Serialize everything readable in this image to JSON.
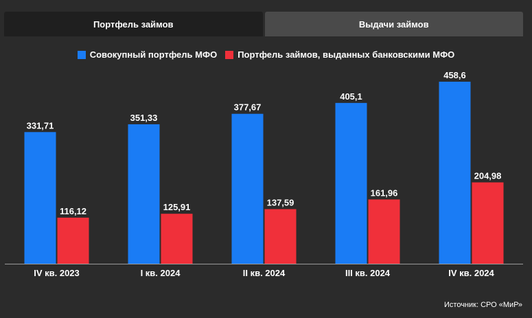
{
  "tabs": {
    "portfolio": "Портфель займов",
    "issuance": "Выдачи займов"
  },
  "colors": {
    "series_total": "#1a7cf5",
    "series_bank": "#f0303a",
    "background": "#2b2b2b"
  },
  "source": "Источник: СРО «МиР»",
  "chart_data": {
    "type": "bar",
    "title": "",
    "xlabel": "",
    "ylabel": "",
    "categories": [
      "IV кв. 2023",
      "I кв. 2024",
      "II кв. 2024",
      "III кв. 2024",
      "IV кв. 2024"
    ],
    "series": [
      {
        "name": "Совокупный портфель МФО",
        "values": [
          331.71,
          351.33,
          377.67,
          405.1,
          458.6
        ],
        "labels": [
          "331,71",
          "351,33",
          "377,67",
          "405,1",
          "458,6"
        ]
      },
      {
        "name": "Портфель займов, выданных банковскими МФО",
        "values": [
          116.12,
          125.91,
          137.59,
          161.96,
          204.98
        ],
        "labels": [
          "116,12",
          "125,91",
          "137,59",
          "161,96",
          "204,98"
        ]
      }
    ],
    "ylim": [
      0,
      500
    ],
    "grid": false,
    "legend": "top-center"
  }
}
